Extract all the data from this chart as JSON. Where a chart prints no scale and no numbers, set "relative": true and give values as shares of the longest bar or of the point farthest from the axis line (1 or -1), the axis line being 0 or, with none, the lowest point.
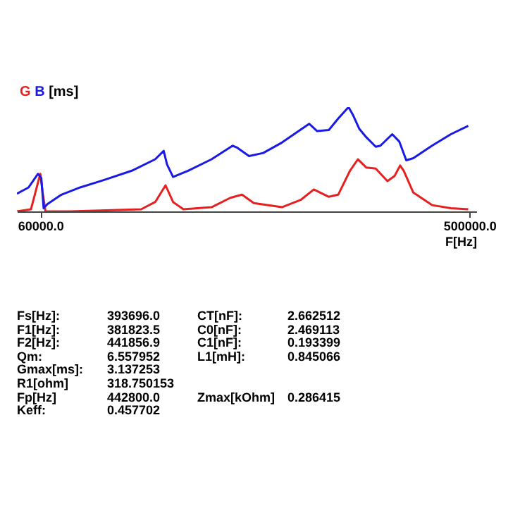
{
  "chart_data": {
    "type": "line",
    "relative": true,
    "xlabel": "F[Hz]",
    "ylabel": "[ms]",
    "xlim": [
      36000,
      507000
    ],
    "xticks": [
      {
        "value": 60000,
        "label": "60000.0"
      },
      {
        "value": 500000,
        "label": "500000.0"
      }
    ],
    "series": [
      {
        "name": "G",
        "color": "#e62020",
        "x": [
          36000,
          50400,
          56600,
          60000,
          62400,
          65300,
          91300,
          163400,
          177800,
          188400,
          196100,
          206700,
          235600,
          254800,
          266800,
          278900,
          307700,
          327000,
          340400,
          355800,
          365400,
          377500,
          385600,
          394300,
          403900,
          415900,
          423200,
          428900,
          432600,
          442400,
          461600,
          480900,
          498700
        ],
        "values": [
          0,
          0.02,
          0.24,
          0.36,
          0.18,
          0,
          0,
          0.02,
          0.09,
          0.25,
          0.09,
          0.02,
          0.04,
          0.13,
          0.16,
          0.08,
          0.04,
          0.11,
          0.21,
          0.14,
          0.16,
          0.39,
          0.5,
          0.42,
          0.41,
          0.29,
          0.34,
          0.44,
          0.39,
          0.18,
          0.06,
          0.03,
          0.02
        ]
      },
      {
        "name": "B",
        "color": "#1a1ae6",
        "x": [
          36000,
          48000,
          57600,
          61000,
          63400,
          67200,
          81600,
          100900,
          124900,
          153800,
          177800,
          186500,
          189900,
          196100,
          211500,
          235600,
          257200,
          262000,
          274000,
          288500,
          307700,
          335600,
          338000,
          343800,
          355800,
          365400,
          376000,
          380800,
          387100,
          394300,
          403900,
          408700,
          420800,
          428000,
          435200,
          442400,
          461600,
          480900,
          498700
        ],
        "values": [
          0.17,
          0.23,
          0.36,
          0.32,
          0.03,
          0.07,
          0.16,
          0.23,
          0.3,
          0.39,
          0.5,
          0.58,
          0.45,
          0.33,
          0.39,
          0.5,
          0.63,
          0.61,
          0.53,
          0.56,
          0.66,
          0.84,
          0.82,
          0.77,
          0.78,
          0.89,
          1,
          0.92,
          0.79,
          0.71,
          0.62,
          0.63,
          0.74,
          0.67,
          0.49,
          0.51,
          0.63,
          0.74,
          0.82
        ]
      }
    ],
    "annotations": [
      "Fs[Hz]:\t393696.0",
      "F1[Hz]:\t381823.5",
      "F2[Hz]:\t441856.9",
      "Qm:\t6.557952",
      "Gmax[ms]:\t3.137253",
      "R1[ohm]\t318.750153",
      "Fp[Hz]\t442800.0",
      "Keff:\t0.457702",
      "CT[nF]:\t2.662512",
      "C0[nF]:\t2.469113",
      "C1[nF]:\t0.193399",
      "L1[mH]:\t0.845066",
      "Zmax[kOhm]\t0.286415"
    ]
  }
}
